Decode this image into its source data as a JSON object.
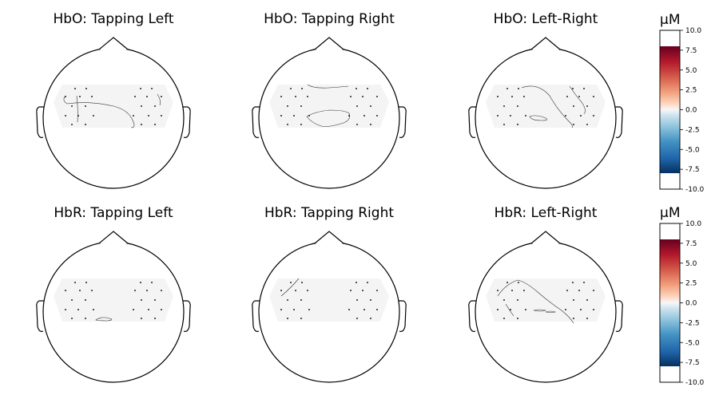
{
  "panels": [
    {
      "title": "HbO: Tapping Left"
    },
    {
      "title": "HbO: Tapping Right"
    },
    {
      "title": "HbO: Left-Right"
    },
    {
      "title": "HbR: Tapping Left"
    },
    {
      "title": "HbR: Tapping Right"
    },
    {
      "title": "HbR: Left-Right"
    }
  ],
  "colorbars": [
    {
      "unit": "µM",
      "ticks": [
        "10.0",
        "7.5",
        "5.0",
        "2.5",
        "0.0",
        "-2.5",
        "-5.0",
        "-7.5",
        "-10.0"
      ],
      "range": [
        -10,
        10
      ],
      "colormap": "RdBu_r",
      "colors": {
        "max": "#67001f",
        "high": "#d6604d",
        "mid": "#f7f7f7",
        "low": "#4393c3",
        "min": "#053061"
      }
    },
    {
      "unit": "µM",
      "ticks": [
        "10.0",
        "7.5",
        "5.0",
        "2.5",
        "0.0",
        "-2.5",
        "-5.0",
        "-7.5",
        "-10.0"
      ],
      "range": [
        -10,
        10
      ],
      "colormap": "RdBu_r",
      "colors": {
        "max": "#67001f",
        "high": "#d6604d",
        "mid": "#f7f7f7",
        "low": "#4393c3",
        "min": "#053061"
      }
    }
  ],
  "map_fill_color": "#f4f4f4"
}
